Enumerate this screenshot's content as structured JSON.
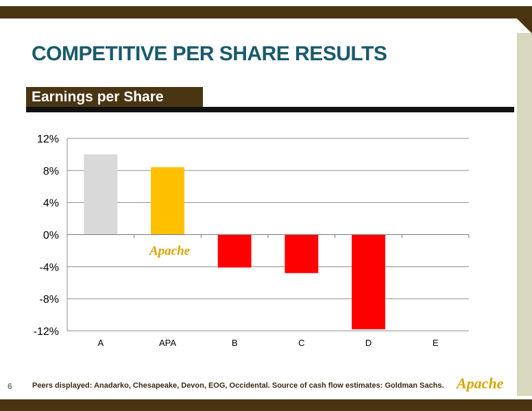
{
  "slide": {
    "title": "COMPETITIVE PER SHARE RESULTS",
    "section_label": "Earnings per Share",
    "page_number": "6",
    "footnote": "Peers displayed: Anadarko, Chesapeake, Devon, EOG, Occidental. Source of cash flow estimates: Goldman Sachs.",
    "logo_text": "Apache"
  },
  "colors": {
    "frame": "#4a3512",
    "title": "#1a5a6c",
    "bar_peer_a": "#d9d9d9",
    "bar_apa": "#ffc000",
    "bar_negative": "#ff0000"
  },
  "chart_data": {
    "type": "bar",
    "title": "",
    "xlabel": "",
    "ylabel": "",
    "categories": [
      "A",
      "APA",
      "B",
      "C",
      "D",
      "E"
    ],
    "values": [
      10.0,
      8.4,
      -4.1,
      -4.8,
      -11.8,
      0
    ],
    "bar_colors": [
      "#d9d9d9",
      "#ffc000",
      "#ff0000",
      "#ff0000",
      "#ff0000",
      "#ff0000"
    ],
    "ylim": [
      -12,
      12
    ],
    "yticks": [
      12,
      8,
      4,
      0,
      -4,
      -8,
      -12
    ],
    "ytick_labels": [
      "12%",
      "8%",
      "4%",
      "0%",
      "-4%",
      "-8%",
      "-12%"
    ],
    "grid": true,
    "legend": "none"
  }
}
